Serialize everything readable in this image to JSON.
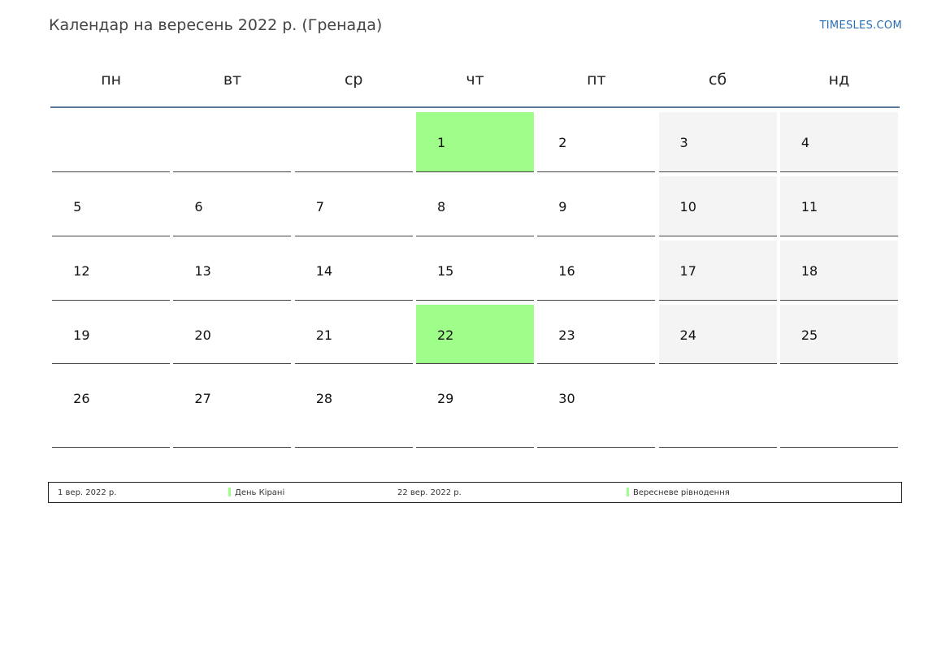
{
  "header": {
    "title": "Календар на вересень 2022 р. (Гренада)",
    "site": "TIMESLES.COM"
  },
  "weekdays": [
    "пн",
    "вт",
    "ср",
    "чт",
    "пт",
    "сб",
    "нд"
  ],
  "weeks": [
    [
      "",
      "",
      "",
      "1",
      "2",
      "3",
      "4"
    ],
    [
      "5",
      "6",
      "7",
      "8",
      "9",
      "10",
      "11"
    ],
    [
      "12",
      "13",
      "14",
      "15",
      "16",
      "17",
      "18"
    ],
    [
      "19",
      "20",
      "21",
      "22",
      "23",
      "24",
      "25"
    ],
    [
      "26",
      "27",
      "28",
      "29",
      "30",
      "",
      ""
    ]
  ],
  "holidays": [
    {
      "date": "1 вер. 2022 р.",
      "name": "День Кірані"
    },
    {
      "date": "22 вер. 2022 р.",
      "name": "Вересневе рівнодення"
    }
  ],
  "colors": {
    "holiday": "#9ffd8a",
    "weekend": "#f4f4f4",
    "header_rule": "#5b7696",
    "link": "#2a6db5"
  }
}
